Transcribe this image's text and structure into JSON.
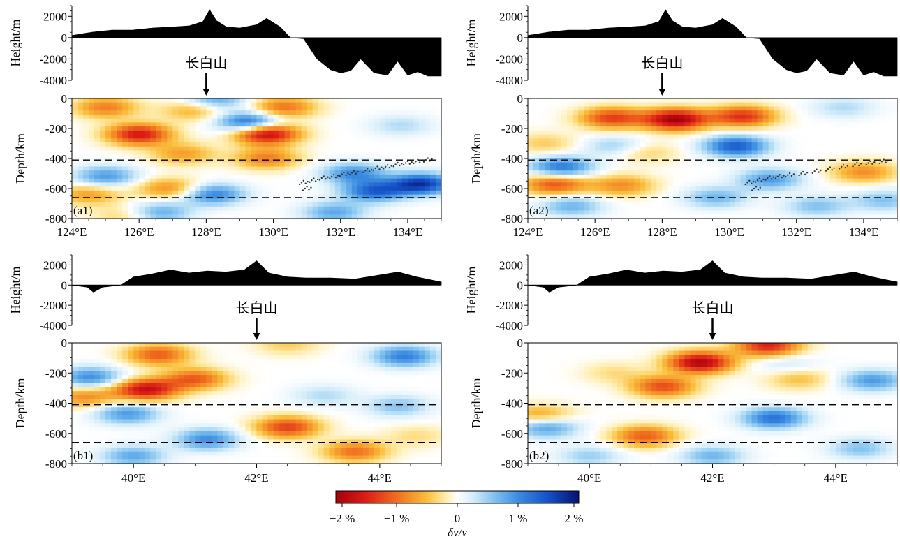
{
  "chart_data": [
    {
      "id": "a1",
      "type": "heatmap",
      "panel_label": "(a1)",
      "elevation": {
        "ylabel": "Height/m",
        "ylim": [
          -4000,
          3000
        ],
        "yticks": [
          "2000",
          "0",
          "-2000",
          "-4000"
        ],
        "profile_x": [
          124,
          124.6,
          125.2,
          125.8,
          126.4,
          127,
          127.5,
          127.9,
          128.1,
          128.3,
          128.6,
          129,
          129.5,
          129.8,
          130.2,
          130.5,
          130.9,
          131.3,
          131.7,
          132,
          132.3,
          132.6,
          133,
          133.4,
          133.7,
          134,
          134.3,
          134.6,
          135
        ],
        "profile_y": [
          200,
          500,
          700,
          700,
          900,
          1000,
          1100,
          1500,
          2600,
          1600,
          1000,
          900,
          1200,
          1800,
          1000,
          0,
          -100,
          -2000,
          -3000,
          -3300,
          -3100,
          -2000,
          -3300,
          -3500,
          -2200,
          -3500,
          -3200,
          -3600,
          -3600
        ],
        "marker_x": 128.0,
        "marker_label": "长白山"
      },
      "section": {
        "ylabel": "Depth/km",
        "ylim": [
          -800,
          0
        ],
        "yticks": [
          "0",
          "-200",
          "-400",
          "-600",
          "-800"
        ],
        "xlim": [
          124,
          135
        ],
        "xticks": [
          "124°E",
          "126°E",
          "128°E",
          "130°E",
          "132°E",
          "134°E"
        ],
        "dashed_depths": [
          -410,
          -660
        ],
        "anomalies": [
          {
            "x": 126.0,
            "z": -240,
            "v": -1.6
          },
          {
            "x": 129.8,
            "z": -235,
            "v": -1.9
          },
          {
            "x": 125.0,
            "z": -60,
            "v": -0.9
          },
          {
            "x": 130.3,
            "z": -60,
            "v": -1.0
          },
          {
            "x": 127.6,
            "z": -80,
            "v": -0.6
          },
          {
            "x": 127.3,
            "z": -370,
            "v": -0.7
          },
          {
            "x": 129.8,
            "z": -400,
            "v": -0.9
          },
          {
            "x": 126.9,
            "z": -600,
            "v": -0.8
          },
          {
            "x": 124.5,
            "z": -640,
            "v": -0.7
          },
          {
            "x": 129.3,
            "z": -160,
            "v": 1.4
          },
          {
            "x": 128.3,
            "z": -5,
            "v": 0.8
          },
          {
            "x": 125.0,
            "z": -520,
            "v": 0.9
          },
          {
            "x": 128.2,
            "z": -640,
            "v": 1.1
          },
          {
            "x": 132.4,
            "z": -500,
            "v": 1.0
          },
          {
            "x": 134.4,
            "z": -570,
            "v": 1.7
          },
          {
            "x": 133.0,
            "z": -620,
            "v": 1.3
          },
          {
            "x": 126.6,
            "z": -760,
            "v": 0.8
          },
          {
            "x": 131.8,
            "z": -760,
            "v": 0.8
          },
          {
            "x": 133.8,
            "z": -180,
            "v": 0.4
          },
          {
            "x": 125.6,
            "z": -780,
            "v": -0.4
          }
        ],
        "seismicity": [
          {
            "x": 130.9,
            "z": -560
          },
          {
            "x": 131.2,
            "z": -545
          },
          {
            "x": 131.5,
            "z": -530
          },
          {
            "x": 131.8,
            "z": -520
          },
          {
            "x": 132.1,
            "z": -505
          },
          {
            "x": 132.4,
            "z": -495
          },
          {
            "x": 132.8,
            "z": -480
          },
          {
            "x": 133.1,
            "z": -465
          },
          {
            "x": 133.4,
            "z": -455
          },
          {
            "x": 133.7,
            "z": -440
          },
          {
            "x": 134.0,
            "z": -430
          },
          {
            "x": 134.3,
            "z": -420
          },
          {
            "x": 134.6,
            "z": -410
          },
          {
            "x": 131.0,
            "z": -600
          }
        ]
      }
    },
    {
      "id": "a2",
      "type": "heatmap",
      "panel_label": "(a2)",
      "elevation": {
        "ylabel": "Height/m",
        "ylim": [
          -4000,
          3000
        ],
        "yticks": [
          "2000",
          "0",
          "-2000",
          "-4000"
        ],
        "profile_x": [
          124,
          124.6,
          125.2,
          125.8,
          126.4,
          127,
          127.5,
          127.9,
          128.1,
          128.3,
          128.6,
          129,
          129.5,
          129.8,
          130.2,
          130.5,
          130.9,
          131.3,
          131.7,
          132,
          132.3,
          132.6,
          133,
          133.4,
          133.7,
          134,
          134.3,
          134.6,
          135
        ],
        "profile_y": [
          200,
          500,
          700,
          700,
          900,
          1000,
          1100,
          1500,
          2600,
          1600,
          1000,
          900,
          1200,
          1800,
          1000,
          0,
          -100,
          -2000,
          -3000,
          -3300,
          -3100,
          -2000,
          -3300,
          -3500,
          -2200,
          -3500,
          -3200,
          -3600,
          -3600
        ],
        "marker_x": 128.0,
        "marker_label": "长白山"
      },
      "section": {
        "ylabel": "Depth/km",
        "ylim": [
          -800,
          0
        ],
        "yticks": [
          "0",
          "-200",
          "-400",
          "-600",
          "-800"
        ],
        "xlim": [
          124,
          135
        ],
        "xticks": [
          "124°E",
          "126°E",
          "128°E",
          "130°E",
          "132°E",
          "134°E"
        ],
        "dashed_depths": [
          -410,
          -660
        ],
        "anomalies": [
          {
            "x": 128.4,
            "z": -140,
            "v": -2.0
          },
          {
            "x": 126.5,
            "z": -130,
            "v": -1.3
          },
          {
            "x": 130.4,
            "z": -120,
            "v": -1.4
          },
          {
            "x": 124.8,
            "z": -570,
            "v": -1.2
          },
          {
            "x": 126.8,
            "z": -580,
            "v": -0.8
          },
          {
            "x": 134.0,
            "z": -490,
            "v": -0.8
          },
          {
            "x": 127.5,
            "z": -360,
            "v": -0.4
          },
          {
            "x": 124.5,
            "z": -300,
            "v": -0.4
          },
          {
            "x": 130.2,
            "z": -320,
            "v": 1.4
          },
          {
            "x": 125.0,
            "z": -460,
            "v": 1.2
          },
          {
            "x": 126.6,
            "z": -320,
            "v": 0.5
          },
          {
            "x": 131.2,
            "z": -540,
            "v": 0.9
          },
          {
            "x": 129.6,
            "z": -660,
            "v": 0.7
          },
          {
            "x": 125.3,
            "z": -720,
            "v": 0.7
          },
          {
            "x": 133.4,
            "z": -60,
            "v": 0.4
          },
          {
            "x": 134.6,
            "z": -680,
            "v": 0.6
          },
          {
            "x": 132.6,
            "z": -720,
            "v": 0.6
          }
        ],
        "seismicity": [
          {
            "x": 130.6,
            "z": -560
          },
          {
            "x": 130.9,
            "z": -545
          },
          {
            "x": 131.2,
            "z": -530
          },
          {
            "x": 131.5,
            "z": -520
          },
          {
            "x": 131.8,
            "z": -510
          },
          {
            "x": 132.2,
            "z": -500
          },
          {
            "x": 132.6,
            "z": -485
          },
          {
            "x": 133.0,
            "z": -470
          },
          {
            "x": 133.4,
            "z": -455
          },
          {
            "x": 133.8,
            "z": -440
          },
          {
            "x": 134.2,
            "z": -430
          },
          {
            "x": 134.6,
            "z": -420
          },
          {
            "x": 130.8,
            "z": -600
          }
        ]
      }
    },
    {
      "id": "b1",
      "type": "heatmap",
      "panel_label": "(b1)",
      "elevation": {
        "ylabel": "Height/m",
        "ylim": [
          -4000,
          3000
        ],
        "yticks": [
          "2000",
          "0",
          "-2000",
          "-4000"
        ],
        "profile_x": [
          39,
          39.25,
          39.35,
          39.5,
          39.8,
          40,
          40.3,
          40.6,
          40.9,
          41.2,
          41.5,
          41.8,
          42,
          42.2,
          42.5,
          42.8,
          43.2,
          43.6,
          44,
          44.3,
          44.6,
          45
        ],
        "profile_y": [
          0,
          -200,
          -700,
          -200,
          0,
          800,
          1100,
          1500,
          1200,
          1400,
          1300,
          1500,
          2400,
          1200,
          800,
          700,
          700,
          600,
          1000,
          1300,
          800,
          300
        ],
        "marker_x": 42.0,
        "marker_label": "长白山"
      },
      "section": {
        "ylabel": "Depth/km",
        "ylim": [
          -800,
          0
        ],
        "yticks": [
          "0",
          "-200",
          "-400",
          "-600",
          "-800"
        ],
        "xlim": [
          39,
          45
        ],
        "xticks": [
          "40°E",
          "42°E",
          "44°E"
        ],
        "dashed_depths": [
          -410,
          -660
        ],
        "anomalies": [
          {
            "x": 40.2,
            "z": -310,
            "v": -1.7
          },
          {
            "x": 41.0,
            "z": -240,
            "v": -1.1
          },
          {
            "x": 40.4,
            "z": -80,
            "v": -1.1
          },
          {
            "x": 39.2,
            "z": -360,
            "v": -0.8
          },
          {
            "x": 42.5,
            "z": -560,
            "v": -1.3
          },
          {
            "x": 43.6,
            "z": -720,
            "v": -1.0
          },
          {
            "x": 42.5,
            "z": -10,
            "v": -0.4
          },
          {
            "x": 39.3,
            "z": -230,
            "v": 1.0
          },
          {
            "x": 39.9,
            "z": -470,
            "v": 0.9
          },
          {
            "x": 40.0,
            "z": -750,
            "v": 0.8
          },
          {
            "x": 41.2,
            "z": -640,
            "v": 1.0
          },
          {
            "x": 44.4,
            "z": -90,
            "v": 1.1
          },
          {
            "x": 44.3,
            "z": -420,
            "v": 0.6
          },
          {
            "x": 43.1,
            "z": -350,
            "v": 0.4
          },
          {
            "x": 44.6,
            "z": -620,
            "v": -0.3
          }
        ],
        "seismicity": []
      }
    },
    {
      "id": "b2",
      "type": "heatmap",
      "panel_label": "(b2)",
      "elevation": {
        "ylabel": "Height/m",
        "ylim": [
          -4000,
          3000
        ],
        "yticks": [
          "2000",
          "0",
          "-2000",
          "-4000"
        ],
        "profile_x": [
          39,
          39.25,
          39.35,
          39.5,
          39.8,
          40,
          40.3,
          40.6,
          40.9,
          41.2,
          41.5,
          41.8,
          42,
          42.2,
          42.5,
          42.8,
          43.2,
          43.6,
          44,
          44.3,
          44.6,
          45
        ],
        "profile_y": [
          0,
          -200,
          -700,
          -200,
          0,
          800,
          1100,
          1500,
          1200,
          1400,
          1300,
          1500,
          2400,
          1200,
          800,
          700,
          700,
          600,
          1000,
          1300,
          800,
          300
        ],
        "marker_x": 42.0,
        "marker_label": "长白山"
      },
      "section": {
        "ylabel": "Depth/km",
        "ylim": [
          -800,
          0
        ],
        "yticks": [
          "0",
          "-200",
          "-400",
          "-600",
          "-800"
        ],
        "xlim": [
          39,
          45
        ],
        "xticks": [
          "40°E",
          "42°E",
          "44°E"
        ],
        "dashed_depths": [
          -410,
          -660
        ],
        "anomalies": [
          {
            "x": 41.8,
            "z": -130,
            "v": -1.9
          },
          {
            "x": 42.9,
            "z": -20,
            "v": -1.5
          },
          {
            "x": 41.2,
            "z": -290,
            "v": -1.2
          },
          {
            "x": 40.9,
            "z": -620,
            "v": -1.1
          },
          {
            "x": 39.2,
            "z": -480,
            "v": -0.7
          },
          {
            "x": 40.4,
            "z": -200,
            "v": -0.3
          },
          {
            "x": 43.4,
            "z": -240,
            "v": -0.5
          },
          {
            "x": 39.3,
            "z": -560,
            "v": 0.9
          },
          {
            "x": 43.0,
            "z": -500,
            "v": 1.2
          },
          {
            "x": 44.6,
            "z": -250,
            "v": 0.9
          },
          {
            "x": 43.2,
            "z": -140,
            "v": 0.3
          },
          {
            "x": 40.0,
            "z": -750,
            "v": 0.5
          },
          {
            "x": 42.0,
            "z": -750,
            "v": 0.7
          },
          {
            "x": 44.4,
            "z": -700,
            "v": 0.6
          }
        ],
        "seismicity": []
      }
    }
  ],
  "colorbar": {
    "ticks": [
      "−2 %",
      "−1 %",
      "0",
      "1 %",
      "2 %"
    ],
    "label": "δv/v",
    "range": [
      -2,
      2
    ],
    "colors": [
      "#a6000c",
      "#e8431c",
      "#f8a021",
      "#fff8d2",
      "#ffffff",
      "#dff1fb",
      "#6fb7ec",
      "#1e6ad4",
      "#08126e"
    ]
  }
}
